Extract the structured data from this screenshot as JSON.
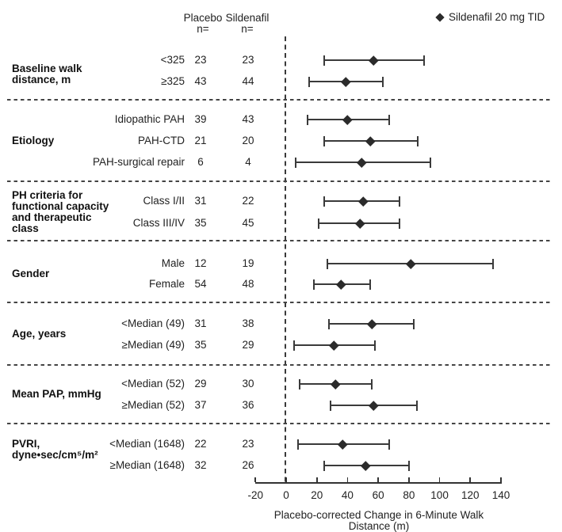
{
  "legend": {
    "label": "Sildenafil 20 mg TID"
  },
  "column_headers": {
    "placebo": "Placebo\nn=",
    "sildenafil": "Sildenafil\nn="
  },
  "chart_data": {
    "type": "scatter",
    "subtype": "forest-plot",
    "title": "",
    "xlabel": "Placebo-corrected Change in 6-Minute Walk Distance (m)",
    "xlim": [
      -20,
      140
    ],
    "x_ticks": [
      -20,
      0,
      20,
      40,
      60,
      80,
      100,
      120,
      140
    ],
    "reference_line_x": 0,
    "grid": false,
    "legend_position": "top-right",
    "legend_entries": [
      "Sildenafil 20 mg TID"
    ],
    "marker": "diamond",
    "column_headers": [
      "Placebo n=",
      "Sildenafil n="
    ],
    "groups": [
      {
        "label": "Baseline walk\ndistance, m",
        "rows": [
          {
            "subgroup": "<325",
            "placebo_n": 23,
            "sildenafil_n": 23,
            "estimate": 57,
            "ci_low": 25,
            "ci_high": 90
          },
          {
            "subgroup": "≥325",
            "placebo_n": 43,
            "sildenafil_n": 44,
            "estimate": 39,
            "ci_low": 15,
            "ci_high": 63
          }
        ]
      },
      {
        "label": "Etiology",
        "rows": [
          {
            "subgroup": "Idiopathic PAH",
            "placebo_n": 39,
            "sildenafil_n": 43,
            "estimate": 40,
            "ci_low": 14,
            "ci_high": 67
          },
          {
            "subgroup": "PAH-CTD",
            "placebo_n": 21,
            "sildenafil_n": 20,
            "estimate": 55,
            "ci_low": 25,
            "ci_high": 86
          },
          {
            "subgroup": "PAH-surgical repair",
            "placebo_n": 6,
            "sildenafil_n": 4,
            "estimate": 49,
            "ci_low": 6,
            "ci_high": 94
          }
        ]
      },
      {
        "label": "PH criteria for\nfunctional capacity\nand therapeutic\nclass",
        "rows": [
          {
            "subgroup": "Class I/II",
            "placebo_n": 31,
            "sildenafil_n": 22,
            "estimate": 50,
            "ci_low": 25,
            "ci_high": 74
          },
          {
            "subgroup": "Class III/IV",
            "placebo_n": 35,
            "sildenafil_n": 45,
            "estimate": 48,
            "ci_low": 21,
            "ci_high": 74
          }
        ]
      },
      {
        "label": "Gender",
        "rows": [
          {
            "subgroup": "Male",
            "placebo_n": 12,
            "sildenafil_n": 19,
            "estimate": 81,
            "ci_low": 27,
            "ci_high": 135
          },
          {
            "subgroup": "Female",
            "placebo_n": 54,
            "sildenafil_n": 48,
            "estimate": 36,
            "ci_low": 18,
            "ci_high": 55
          }
        ]
      },
      {
        "label": "Age, years",
        "rows": [
          {
            "subgroup": "<Median (49)",
            "placebo_n": 31,
            "sildenafil_n": 38,
            "estimate": 56,
            "ci_low": 28,
            "ci_high": 83
          },
          {
            "subgroup": "≥Median (49)",
            "placebo_n": 35,
            "sildenafil_n": 29,
            "estimate": 31,
            "ci_low": 5,
            "ci_high": 58
          }
        ]
      },
      {
        "label": "Mean PAP, mmHg",
        "rows": [
          {
            "subgroup": "<Median (52)",
            "placebo_n": 29,
            "sildenafil_n": 30,
            "estimate": 32,
            "ci_low": 9,
            "ci_high": 56
          },
          {
            "subgroup": "≥Median (52)",
            "placebo_n": 37,
            "sildenafil_n": 36,
            "estimate": 57,
            "ci_low": 29,
            "ci_high": 85
          }
        ]
      },
      {
        "label": "PVRI,\ndyne•sec/cm⁵/m²",
        "rows": [
          {
            "subgroup": "<Median (1648)",
            "placebo_n": 22,
            "sildenafil_n": 23,
            "estimate": 37,
            "ci_low": 8,
            "ci_high": 67
          },
          {
            "subgroup": "≥Median (1648)",
            "placebo_n": 32,
            "sildenafil_n": 26,
            "estimate": 52,
            "ci_low": 25,
            "ci_high": 80
          }
        ]
      }
    ]
  }
}
